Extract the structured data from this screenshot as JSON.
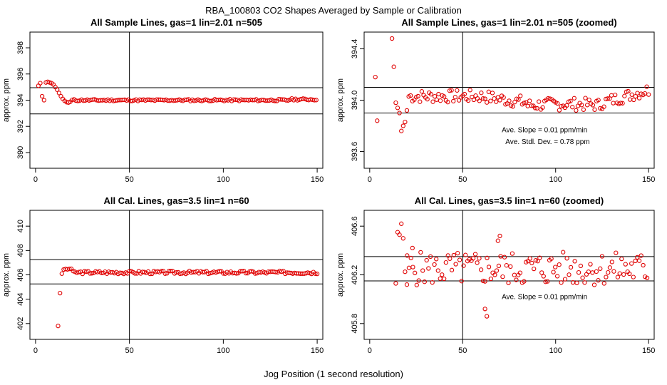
{
  "figure_title": "RBA_100803  CO2 Shapes Averaged by Sample or Calibration",
  "x_caption": "Jog Position (1 second resolution)",
  "colors": {
    "points": "#e00000",
    "lines": "#000000",
    "frame": "#000000",
    "background": "#ffffff"
  },
  "chart_data": [
    {
      "id": "sample",
      "type": "scatter",
      "title": "All Sample Lines, gas=1 lin=2.01 n=505",
      "ylabel": "approx. ppm",
      "xlim": [
        -3,
        153
      ],
      "ylim": [
        388.8,
        399.2
      ],
      "xticks": [
        0,
        50,
        100,
        150
      ],
      "yticks": [
        390,
        392,
        394,
        396,
        398
      ],
      "vline": 50,
      "hlines": [
        392.95,
        394.95
      ],
      "grid": false,
      "legend": "none",
      "annotations": [],
      "gen": "sample",
      "x": [],
      "y": []
    },
    {
      "id": "sample-zoom",
      "type": "scatter",
      "title": "All Sample Lines, gas=1 lin=2.01 n=505 (zoomed)",
      "ylabel": "approx. ppm",
      "xlim": [
        -3,
        153
      ],
      "ylim": [
        393.47,
        394.53
      ],
      "xticks": [
        0,
        50,
        100,
        150
      ],
      "yticks": [
        393.6,
        394.0,
        394.4
      ],
      "vline": 50,
      "hlines": [
        393.9,
        394.1
      ],
      "grid": false,
      "legend": "none",
      "annotations": [
        {
          "text": "Ave. Slope =  0.01  ppm/min",
          "x": 71,
          "y": 393.75
        },
        {
          "text": "Ave. Stdl. Dev. =  0.78  ppm",
          "x": 73,
          "y": 393.66
        }
      ],
      "gen": "zoom",
      "x": [],
      "y": []
    },
    {
      "id": "cal",
      "type": "scatter",
      "title": "All Cal. Lines, gas=3.5 lin=1 n=60",
      "ylabel": "approx. ppm",
      "xlim": [
        -3,
        153
      ],
      "ylim": [
        400.7,
        411.3
      ],
      "xticks": [
        0,
        50,
        100,
        150
      ],
      "yticks": [
        402,
        404,
        406,
        408,
        410
      ],
      "vline": 50,
      "hlines": [
        405.25,
        407.25
      ],
      "grid": false,
      "legend": "none",
      "annotations": [],
      "gen": "cal",
      "x": [],
      "y": []
    },
    {
      "id": "cal-zoom",
      "type": "scatter",
      "title": "All Cal. Lines, gas=3.5 lin=1 n=60 (zoomed)",
      "ylabel": "approx. ppm",
      "xlim": [
        -3,
        153
      ],
      "ylim": [
        405.67,
        406.73
      ],
      "xticks": [
        0,
        50,
        100,
        150
      ],
      "yticks": [
        405.8,
        406.2,
        406.6
      ],
      "vline": 50,
      "hlines": [
        406.15,
        406.35
      ],
      "grid": false,
      "legend": "none",
      "annotations": [
        {
          "text": "Ave. Slope =  0.01  ppm/min",
          "x": 71,
          "y": 406.0
        }
      ],
      "gen": "calzoom",
      "x": [],
      "y": []
    }
  ]
}
